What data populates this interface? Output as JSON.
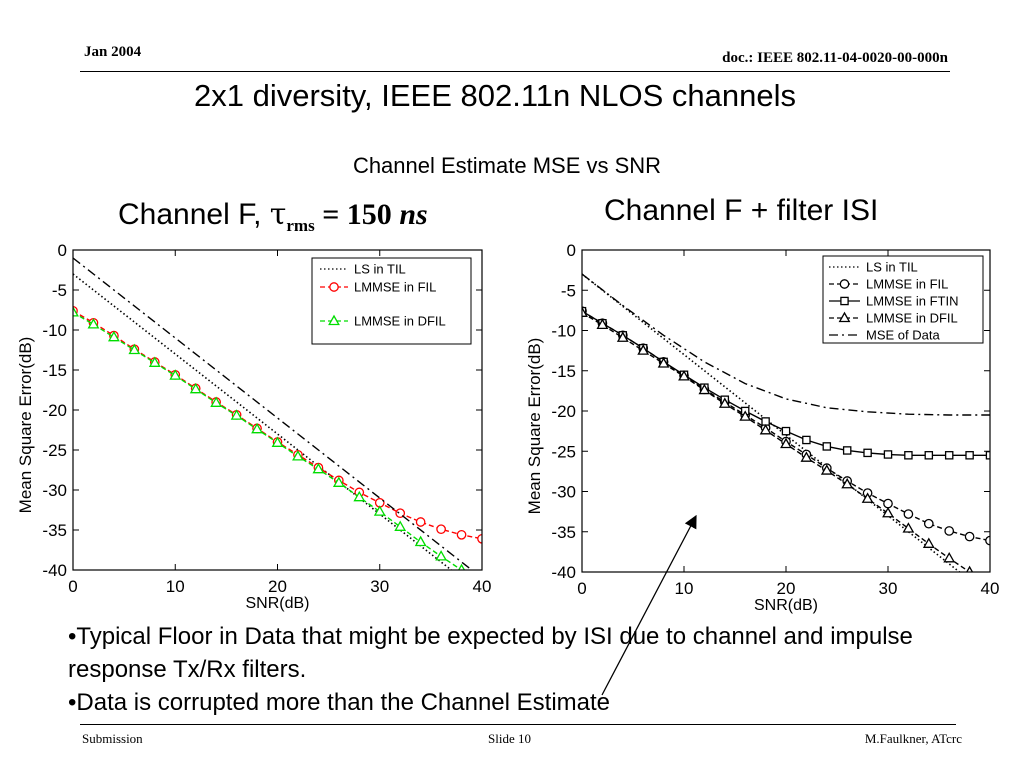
{
  "header": {
    "date": "Jan 2004",
    "doc": "doc.: IEEE 802.11-04-0020-00-000n"
  },
  "slide_title": "2x1 diversity, IEEE 802.11n NLOS channels",
  "subtitle": "Channel Estimate MSE vs  SNR",
  "left_title": {
    "prefix": "Channel F, ",
    "tau": "τ",
    "sub": "rms",
    "eq": " = 150 ",
    "unit": "ns"
  },
  "right_title": "Channel F + filter ISI",
  "bullets": [
    "•Typical Floor in Data that might be expected by ISI due to channel and impulse response Tx/Rx filters.",
    "•Data is corrupted more than the Channel Estimate"
  ],
  "footer": {
    "left": "Submission",
    "mid": "Slide 10",
    "right": "M.Faulkner, ATcrc"
  },
  "colors": {
    "red": "#ff0000",
    "green": "#00dd00",
    "black": "#000000"
  },
  "chart_data": [
    {
      "type": "line",
      "xlabel": "SNR(dB)",
      "ylabel": "Mean Square Error(dB)",
      "xlim": [
        0,
        40
      ],
      "ylim": [
        -40,
        0
      ],
      "xticks": [
        0,
        10,
        20,
        30,
        40
      ],
      "yticks": [
        0,
        -5,
        -10,
        -15,
        -20,
        -25,
        -30,
        -35,
        -40
      ],
      "legend_position": "top-right",
      "grid": false,
      "series": [
        {
          "name": "LS in TIL",
          "style": "dotted",
          "color": "#000000",
          "marker": "none",
          "x": [
            0,
            40
          ],
          "y": [
            -3,
            -43
          ]
        },
        {
          "name": "LMMSE in FIL",
          "style": "dashed",
          "color": "#ff0000",
          "marker": "circle",
          "x": [
            0,
            2,
            4,
            6,
            8,
            10,
            12,
            14,
            16,
            18,
            20,
            22,
            24,
            26,
            28,
            30,
            32,
            34,
            36,
            38,
            40
          ],
          "y": [
            -7.6,
            -9.1,
            -10.7,
            -12.4,
            -14,
            -15.6,
            -17.3,
            -19,
            -20.6,
            -22.3,
            -24,
            -25.6,
            -27.2,
            -28.8,
            -30.3,
            -31.6,
            -32.9,
            -34,
            -34.9,
            -35.6,
            -36.1
          ]
        },
        {
          "name": "LMMSE in DFIL",
          "style": "dashed",
          "color": "#00dd00",
          "marker": "triangle",
          "x": [
            0,
            2,
            4,
            6,
            8,
            10,
            12,
            14,
            16,
            18,
            20,
            22,
            24,
            26,
            28,
            30,
            32,
            34,
            36,
            38
          ],
          "y": [
            -7.8,
            -9.3,
            -10.9,
            -12.5,
            -14.1,
            -15.7,
            -17.4,
            -19.1,
            -20.7,
            -22.4,
            -24.1,
            -25.8,
            -27.4,
            -29.1,
            -30.9,
            -32.7,
            -34.6,
            -36.5,
            -38.3,
            -40
          ]
        },
        {
          "name": "",
          "style": "dashdot",
          "color": "#000000",
          "marker": "none",
          "x": [
            0,
            40
          ],
          "y": [
            -1,
            -41
          ]
        }
      ]
    },
    {
      "type": "line",
      "xlabel": "SNR(dB)",
      "ylabel": "Mean Square Error(dB)",
      "xlim": [
        0,
        40
      ],
      "ylim": [
        -40,
        0
      ],
      "xticks": [
        0,
        10,
        20,
        30,
        40
      ],
      "yticks": [
        0,
        -5,
        -10,
        -15,
        -20,
        -25,
        -30,
        -35,
        -40
      ],
      "legend_position": "top-right",
      "grid": false,
      "series": [
        {
          "name": "LS in TIL",
          "style": "dotted",
          "color": "#000000",
          "marker": "none",
          "x": [
            0,
            40
          ],
          "y": [
            -3,
            -43
          ]
        },
        {
          "name": "LMMSE in FIL",
          "style": "dashed",
          "color": "#000000",
          "marker": "circle",
          "x": [
            0,
            2,
            4,
            6,
            8,
            10,
            12,
            14,
            16,
            18,
            20,
            22,
            24,
            26,
            28,
            30,
            32,
            34,
            36,
            38,
            40
          ],
          "y": [
            -7.6,
            -9.1,
            -10.6,
            -12.2,
            -13.9,
            -15.6,
            -17.3,
            -18.9,
            -20.5,
            -22.1,
            -23.8,
            -25.4,
            -27.1,
            -28.7,
            -30.2,
            -31.5,
            -32.8,
            -34,
            -34.9,
            -35.6,
            -36.1
          ]
        },
        {
          "name": "LMMSE in FTIN",
          "style": "solid",
          "color": "#000000",
          "marker": "square",
          "x": [
            0,
            2,
            4,
            6,
            8,
            10,
            12,
            14,
            16,
            18,
            20,
            22,
            24,
            26,
            28,
            30,
            32,
            34,
            36,
            38,
            40
          ],
          "y": [
            -7.6,
            -9.1,
            -10.6,
            -12.2,
            -13.9,
            -15.5,
            -17.1,
            -18.6,
            -20,
            -21.3,
            -22.5,
            -23.6,
            -24.4,
            -24.9,
            -25.2,
            -25.4,
            -25.5,
            -25.5,
            -25.5,
            -25.5,
            -25.5
          ]
        },
        {
          "name": "LMMSE in DFIL",
          "style": "dashed",
          "color": "#000000",
          "marker": "triangle",
          "x": [
            0,
            2,
            4,
            6,
            8,
            10,
            12,
            14,
            16,
            18,
            20,
            22,
            24,
            26,
            28,
            30,
            32,
            34,
            36,
            38
          ],
          "y": [
            -7.8,
            -9.3,
            -10.9,
            -12.5,
            -14.1,
            -15.7,
            -17.4,
            -19.1,
            -20.7,
            -22.4,
            -24.1,
            -25.8,
            -27.4,
            -29.1,
            -30.9,
            -32.7,
            -34.6,
            -36.5,
            -38.3,
            -40
          ]
        },
        {
          "name": "MSE of Data",
          "style": "dashdot",
          "color": "#000000",
          "marker": "none",
          "x": [
            0,
            4,
            8,
            12,
            16,
            20,
            24,
            28,
            32,
            36,
            40
          ],
          "y": [
            -3,
            -6.9,
            -10.6,
            -13.9,
            -16.6,
            -18.5,
            -19.6,
            -20.1,
            -20.4,
            -20.5,
            -20.5
          ]
        }
      ]
    }
  ]
}
